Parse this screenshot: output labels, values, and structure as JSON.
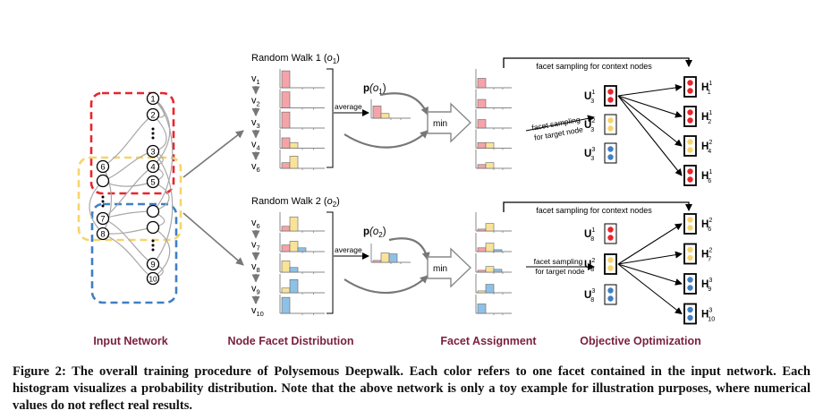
{
  "sections": {
    "input_network": "Input Network",
    "node_facet": "Node Facet Distribution",
    "facet_assignment": "Facet Assignment",
    "objective": "Objective Optimization"
  },
  "walk1": {
    "title": "Random Walk 1 (",
    "title_var": "o",
    "title_sub": "1",
    "title_end": ")",
    "nodes": [
      {
        "v": "v",
        "s": "1"
      },
      {
        "v": "v",
        "s": "2"
      },
      {
        "v": "v",
        "s": "3"
      },
      {
        "v": "v",
        "s": "4"
      },
      {
        "v": "v",
        "s": "6"
      }
    ],
    "average": "average",
    "p_bold": "p",
    "p_arg": "(o",
    "p_sub": "1",
    "p_end": ")",
    "min": "min",
    "context": "facet sampling for context nodes",
    "target_1": "facet sampling",
    "target_2": "for target node",
    "U": [
      {
        "base": "U",
        "sub": "3",
        "sup": "1"
      },
      {
        "base": "U",
        "sub": "3",
        "sup": "2"
      },
      {
        "base": "U",
        "sub": "3",
        "sup": "3"
      }
    ],
    "H": [
      {
        "base": "H",
        "sub": "1",
        "sup": "1"
      },
      {
        "base": "H",
        "sub": "2",
        "sup": "1"
      },
      {
        "base": "H",
        "sub": "4",
        "sup": "2"
      },
      {
        "base": "H",
        "sub": "6",
        "sup": "1"
      }
    ]
  },
  "walk2": {
    "title": "Random Walk 2 (",
    "title_var": "o",
    "title_sub": "2",
    "title_end": ")",
    "nodes": [
      {
        "v": "v",
        "s": "6"
      },
      {
        "v": "v",
        "s": "7"
      },
      {
        "v": "v",
        "s": "8"
      },
      {
        "v": "v",
        "s": "9"
      },
      {
        "v": "v",
        "s": "10"
      }
    ],
    "average": "average",
    "p_bold": "p",
    "p_arg": "(o",
    "p_sub": "2",
    "p_end": ")",
    "min": "min",
    "context": "facet sampling for context nodes",
    "target_1": "facet sampling",
    "target_2": "for target node",
    "U": [
      {
        "base": "U",
        "sub": "8",
        "sup": "1"
      },
      {
        "base": "U",
        "sub": "8",
        "sup": "2"
      },
      {
        "base": "U",
        "sub": "8",
        "sup": "3"
      }
    ],
    "H": [
      {
        "base": "H",
        "sub": "6",
        "sup": "2"
      },
      {
        "base": "H",
        "sub": "7",
        "sup": "2"
      },
      {
        "base": "H",
        "sub": "9",
        "sup": "3"
      },
      {
        "base": "H",
        "sub": "10",
        "sup": "3"
      }
    ]
  },
  "network_labels": [
    "1",
    "2",
    "3",
    "4",
    "5",
    "6",
    "7",
    "8",
    "9",
    "10"
  ],
  "facet_colors": {
    "red": "#e8252d",
    "yellow": "#f7d46b",
    "blue": "#3f7fc4",
    "pink": "#f4a4a8",
    "light_yellow": "#f9e39a",
    "light_blue": "#8fc1e6"
  },
  "caption": "Figure 2: The overall training procedure of Polysemous Deepwalk. Each color refers to one facet contained in the input network. Each histogram visualizes a probability distribution. Note that the above network is only a toy example for illustration purposes, where numerical values do not reflect real results."
}
